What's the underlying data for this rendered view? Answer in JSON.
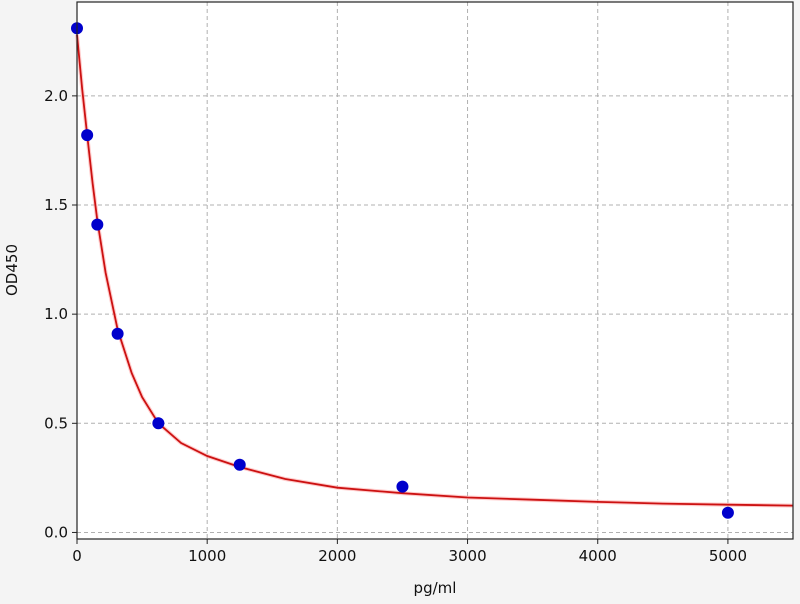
{
  "chart_data": {
    "type": "scatter",
    "title": "",
    "xlabel": "pg/ml",
    "ylabel": "OD450",
    "xlim": [
      0,
      5500
    ],
    "ylim": [
      -0.03,
      2.43
    ],
    "xticks": [
      0,
      1000,
      2000,
      3000,
      4000,
      5000
    ],
    "yticks": [
      0.0,
      0.5,
      1.0,
      1.5,
      2.0
    ],
    "xtick_labels": [
      "0",
      "1000",
      "2000",
      "3000",
      "4000",
      "5000"
    ],
    "ytick_labels": [
      "0.0",
      "0.5",
      "1.0",
      "1.5",
      "2.0"
    ],
    "grid": true,
    "points": {
      "x": [
        0,
        78,
        156,
        312,
        625,
        1250,
        2500,
        5000
      ],
      "y": [
        2.31,
        1.82,
        1.41,
        0.91,
        0.5,
        0.31,
        0.21,
        0.09
      ],
      "color": "#0000cc"
    },
    "fit_curve": {
      "x": [
        0,
        40,
        78,
        120,
        156,
        220,
        312,
        420,
        500,
        625,
        800,
        1000,
        1250,
        1600,
        2000,
        2500,
        3000,
        3500,
        4000,
        4500,
        5000,
        5500
      ],
      "y": [
        2.28,
        2.03,
        1.82,
        1.6,
        1.43,
        1.19,
        0.93,
        0.73,
        0.62,
        0.5,
        0.41,
        0.35,
        0.3,
        0.245,
        0.205,
        0.18,
        0.16,
        0.15,
        0.14,
        0.132,
        0.127,
        0.123
      ],
      "color": "#cc1111"
    }
  }
}
